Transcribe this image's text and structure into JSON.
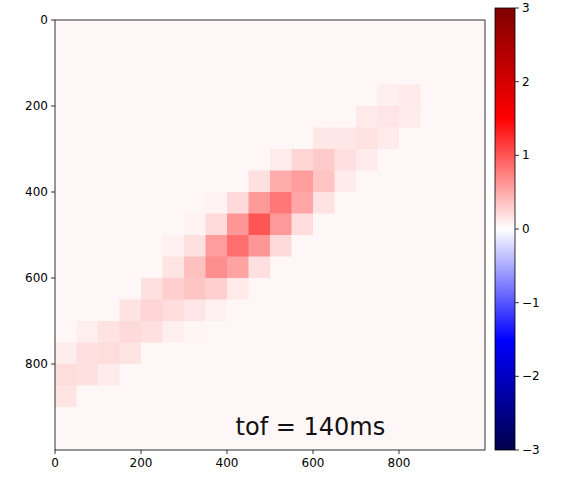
{
  "chart_data": {
    "type": "heatmap",
    "annotation": "tof = 140ms",
    "xlim": [
      0,
      1000
    ],
    "ylim": [
      1000,
      0
    ],
    "xticks": [
      0,
      200,
      400,
      600,
      800
    ],
    "yticks": [
      0,
      200,
      400,
      600,
      800
    ],
    "color_range": [
      -3,
      3
    ],
    "color_ticks": [
      {
        "value": -3,
        "label": "−3"
      },
      {
        "value": -2,
        "label": "−2"
      },
      {
        "value": -1,
        "label": "−1"
      },
      0,
      1,
      2,
      3
    ],
    "cells": [
      [
        0.05,
        0.05,
        0.05,
        0.05,
        0.05,
        0.05,
        0.05,
        0.05,
        0.05,
        0.05,
        0.05,
        0.05,
        0.05,
        0.05,
        0.05,
        0.05,
        0.05,
        0.05,
        0.05,
        0.05
      ],
      [
        0.05,
        0.05,
        0.05,
        0.05,
        0.05,
        0.05,
        0.05,
        0.05,
        0.05,
        0.05,
        0.05,
        0.05,
        0.05,
        0.05,
        0.05,
        0.05,
        0.05,
        0.05,
        0.05,
        0.05
      ],
      [
        0.05,
        0.05,
        0.05,
        0.05,
        0.05,
        0.05,
        0.05,
        0.05,
        0.05,
        0.05,
        0.05,
        0.05,
        0.05,
        0.05,
        0.05,
        0.05,
        0.05,
        0.05,
        0.05,
        0.05
      ],
      [
        0.05,
        0.05,
        0.05,
        0.05,
        0.05,
        0.05,
        0.05,
        0.05,
        0.05,
        0.05,
        0.05,
        0.05,
        0.05,
        0.05,
        0.05,
        0.1,
        0.13,
        0.05,
        0.05,
        0.05
      ],
      [
        0.05,
        0.05,
        0.05,
        0.05,
        0.05,
        0.05,
        0.05,
        0.05,
        0.05,
        0.05,
        0.05,
        0.05,
        0.05,
        0.05,
        0.13,
        0.15,
        0.12,
        0.05,
        0.05,
        0.05
      ],
      [
        0.05,
        0.05,
        0.05,
        0.05,
        0.05,
        0.05,
        0.05,
        0.05,
        0.05,
        0.05,
        0.05,
        0.05,
        0.14,
        0.14,
        0.17,
        0.12,
        0.05,
        0.05,
        0.05,
        0.05
      ],
      [
        0.05,
        0.05,
        0.05,
        0.05,
        0.05,
        0.05,
        0.05,
        0.05,
        0.05,
        0.05,
        0.11,
        0.25,
        0.31,
        0.19,
        0.12,
        0.05,
        0.05,
        0.05,
        0.05,
        0.05
      ],
      [
        0.05,
        0.05,
        0.05,
        0.05,
        0.05,
        0.05,
        0.05,
        0.05,
        0.05,
        0.18,
        0.49,
        0.58,
        0.34,
        0.12,
        0.05,
        0.05,
        0.05,
        0.05,
        0.05,
        0.05
      ],
      [
        0.05,
        0.05,
        0.05,
        0.05,
        0.05,
        0.05,
        0.05,
        0.07,
        0.22,
        0.6,
        0.8,
        0.53,
        0.17,
        0.05,
        0.05,
        0.05,
        0.05,
        0.05,
        0.05,
        0.05
      ],
      [
        0.05,
        0.05,
        0.05,
        0.05,
        0.05,
        0.05,
        0.07,
        0.21,
        0.62,
        1.0,
        0.6,
        0.2,
        0.05,
        0.05,
        0.05,
        0.05,
        0.05,
        0.05,
        0.05,
        0.05
      ],
      [
        0.05,
        0.05,
        0.05,
        0.05,
        0.05,
        0.08,
        0.18,
        0.58,
        0.85,
        0.62,
        0.22,
        0.05,
        0.05,
        0.05,
        0.05,
        0.05,
        0.05,
        0.05,
        0.05,
        0.05
      ],
      [
        0.05,
        0.05,
        0.05,
        0.05,
        0.05,
        0.16,
        0.37,
        0.66,
        0.55,
        0.19,
        0.05,
        0.05,
        0.05,
        0.05,
        0.05,
        0.05,
        0.05,
        0.05,
        0.05,
        0.05
      ],
      [
        0.05,
        0.05,
        0.05,
        0.05,
        0.18,
        0.28,
        0.34,
        0.28,
        0.13,
        0.05,
        0.05,
        0.05,
        0.05,
        0.05,
        0.05,
        0.05,
        0.05,
        0.05,
        0.05,
        0.05
      ],
      [
        0.05,
        0.05,
        0.05,
        0.17,
        0.25,
        0.2,
        0.15,
        0.08,
        0.05,
        0.05,
        0.05,
        0.05,
        0.05,
        0.05,
        0.05,
        0.05,
        0.05,
        0.05,
        0.05,
        0.05
      ],
      [
        0.05,
        0.1,
        0.17,
        0.22,
        0.18,
        0.1,
        0.06,
        0.05,
        0.05,
        0.05,
        0.05,
        0.05,
        0.05,
        0.05,
        0.05,
        0.05,
        0.05,
        0.05,
        0.05,
        0.05
      ],
      [
        0.11,
        0.19,
        0.2,
        0.16,
        0.05,
        0.05,
        0.05,
        0.05,
        0.05,
        0.05,
        0.05,
        0.05,
        0.05,
        0.05,
        0.05,
        0.05,
        0.05,
        0.05,
        0.05,
        0.05
      ],
      [
        0.2,
        0.18,
        0.12,
        0.05,
        0.05,
        0.05,
        0.05,
        0.05,
        0.05,
        0.05,
        0.05,
        0.05,
        0.05,
        0.05,
        0.05,
        0.05,
        0.05,
        0.05,
        0.05,
        0.05
      ],
      [
        0.16,
        0.05,
        0.05,
        0.05,
        0.05,
        0.05,
        0.05,
        0.05,
        0.05,
        0.05,
        0.05,
        0.05,
        0.05,
        0.05,
        0.05,
        0.05,
        0.05,
        0.05,
        0.05,
        0.05
      ],
      [
        0.05,
        0.05,
        0.05,
        0.05,
        0.05,
        0.05,
        0.05,
        0.05,
        0.05,
        0.05,
        0.05,
        0.05,
        0.05,
        0.05,
        0.05,
        0.05,
        0.05,
        0.05,
        0.05,
        0.05
      ],
      [
        0.05,
        0.05,
        0.05,
        0.05,
        0.05,
        0.05,
        0.05,
        0.05,
        0.05,
        0.05,
        0.05,
        0.05,
        0.05,
        0.05,
        0.05,
        0.05,
        0.05,
        0.05,
        0.05,
        0.05
      ]
    ]
  }
}
